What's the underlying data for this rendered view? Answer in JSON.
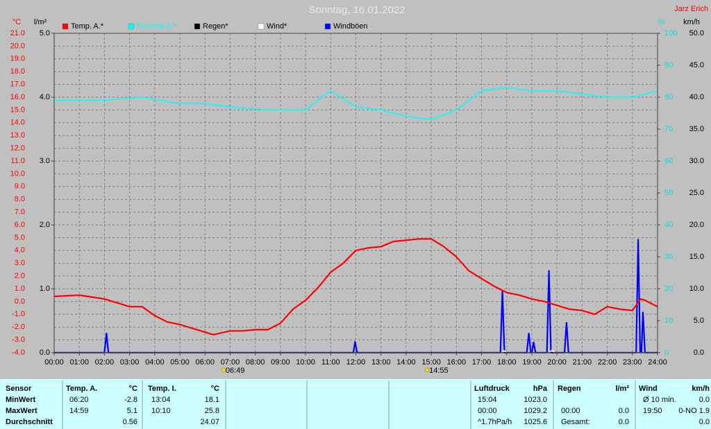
{
  "chart_data": {
    "type": "line",
    "title": "Sonntag, 16.01.2022",
    "credit": "Jarz Erich",
    "grid": true,
    "xlim": [
      0,
      24
    ],
    "xticks": [
      {
        "value": 0,
        "label": "00:00"
      },
      {
        "value": 1,
        "label": "01:00"
      },
      {
        "value": 2,
        "label": "02:00"
      },
      {
        "value": 3,
        "label": "03:00"
      },
      {
        "value": 4,
        "label": "04:00"
      },
      {
        "value": 5,
        "label": "05:00"
      },
      {
        "value": 6,
        "label": "06:00"
      },
      {
        "value": 7,
        "label": "07:00"
      },
      {
        "value": 8,
        "label": "08:00"
      },
      {
        "value": 9,
        "label": "09:00"
      },
      {
        "value": 10,
        "label": "10:00"
      },
      {
        "value": 11,
        "label": "11:00"
      },
      {
        "value": 12,
        "label": "12:00"
      },
      {
        "value": 13,
        "label": "13:00"
      },
      {
        "value": 14,
        "label": "14:00"
      },
      {
        "value": 15,
        "label": "15:00"
      },
      {
        "value": 16,
        "label": "16:00"
      },
      {
        "value": 17,
        "label": "17:00"
      },
      {
        "value": 18,
        "label": "18:00"
      },
      {
        "value": 19,
        "label": "19:00"
      },
      {
        "value": 20,
        "label": "20:00"
      },
      {
        "value": 21,
        "label": "21:00"
      },
      {
        "value": 22,
        "label": "22:00"
      },
      {
        "value": 23,
        "label": "23:00"
      },
      {
        "value": 24,
        "label": "24:00"
      }
    ],
    "ylabel": "°C",
    "ylim": [
      -4,
      21
    ],
    "yticks": [
      {
        "value": 21,
        "label": "21.0"
      },
      {
        "value": 20,
        "label": "20.0"
      },
      {
        "value": 19,
        "label": "19.0"
      },
      {
        "value": 18,
        "label": "18.0"
      },
      {
        "value": 17,
        "label": "17.0"
      },
      {
        "value": 16,
        "label": "16.0"
      },
      {
        "value": 15,
        "label": "15.0"
      },
      {
        "value": 14,
        "label": "14.0"
      },
      {
        "value": 13,
        "label": "13.0"
      },
      {
        "value": 12,
        "label": "12.0"
      },
      {
        "value": 11,
        "label": "11.0"
      },
      {
        "value": 10,
        "label": "10.0"
      },
      {
        "value": 9,
        "label": "9.0"
      },
      {
        "value": 8,
        "label": "8.0"
      },
      {
        "value": 7,
        "label": "7.0"
      },
      {
        "value": 6,
        "label": "6.0"
      },
      {
        "value": 5,
        "label": "5.0"
      },
      {
        "value": 4,
        "label": "4.0"
      },
      {
        "value": 3,
        "label": "3.0"
      },
      {
        "value": 2,
        "label": "2.0"
      },
      {
        "value": 1,
        "label": "1.0"
      },
      {
        "value": 0,
        "label": "0.0"
      },
      {
        "value": -1,
        "label": "-1.0"
      },
      {
        "value": -2,
        "label": "-2.0"
      },
      {
        "value": -3,
        "label": "-3.0"
      },
      {
        "value": -4,
        "label": "-4.0"
      }
    ],
    "y2label": "l/m²",
    "y2lim": [
      0,
      5
    ],
    "y2ticks": [
      {
        "value": 5,
        "label": "5.0"
      },
      {
        "value": 4,
        "label": "4.0"
      },
      {
        "value": 3,
        "label": "3.0"
      },
      {
        "value": 2,
        "label": "2.0"
      },
      {
        "value": 1,
        "label": "1.0"
      },
      {
        "value": 0,
        "label": "0.0"
      }
    ],
    "y3label": "%",
    "y3lim": [
      0,
      100
    ],
    "y3ticks": [
      100,
      90,
      80,
      70,
      60,
      50,
      40,
      30,
      20,
      10,
      0
    ],
    "y4label": "km/h",
    "y4lim": [
      0,
      50
    ],
    "y4ticks": [
      {
        "value": 50,
        "label": "50.0"
      },
      {
        "value": 45,
        "label": "45.0"
      },
      {
        "value": 40,
        "label": "40.0"
      },
      {
        "value": 35,
        "label": "35.0"
      },
      {
        "value": 30,
        "label": "30.0"
      },
      {
        "value": 25,
        "label": "25.0"
      },
      {
        "value": 20,
        "label": "20.0"
      },
      {
        "value": 15,
        "label": "15.0"
      },
      {
        "value": 10,
        "label": "10.0"
      },
      {
        "value": 5,
        "label": "5.0"
      },
      {
        "value": 0,
        "label": "0.0"
      }
    ],
    "series": [
      {
        "name": "Temp. A.*",
        "color": "#ff0000",
        "axis": "y",
        "x": [
          0,
          1,
          2,
          2.67,
          3,
          3.5,
          4,
          4.5,
          5,
          5.5,
          6,
          6.33,
          7,
          7.5,
          8,
          8.5,
          9,
          9.5,
          10,
          10.5,
          11,
          11.5,
          12,
          12.5,
          13,
          13.5,
          14,
          14.5,
          15,
          15.5,
          16,
          16.5,
          17,
          17.5,
          18,
          18.5,
          19,
          19.5,
          20,
          20.5,
          21,
          21.5,
          22,
          22.5,
          23,
          23.33,
          23.5,
          24
        ],
        "values": [
          0.4,
          0.5,
          0.2,
          -0.2,
          -0.4,
          -0.4,
          -1.1,
          -1.6,
          -1.8,
          -2.1,
          -2.4,
          -2.6,
          -2.3,
          -2.3,
          -2.2,
          -2.2,
          -1.7,
          -0.6,
          0.1,
          1.1,
          2.3,
          3.0,
          4.0,
          4.2,
          4.3,
          4.7,
          4.8,
          4.9,
          4.9,
          4.3,
          3.5,
          2.4,
          1.8,
          1.2,
          0.7,
          0.5,
          0.2,
          0.0,
          -0.3,
          -0.6,
          -0.7,
          -1.0,
          -0.4,
          -0.6,
          -0.7,
          0.2,
          0.1,
          -0.4
        ]
      },
      {
        "name": "Feuchte A.*",
        "color": "#00ffff",
        "axis": "y3",
        "x": [
          0,
          2,
          3.5,
          5,
          6,
          7,
          8.5,
          10,
          11,
          12,
          13,
          14,
          15,
          16,
          17,
          18,
          19,
          20,
          21,
          22,
          23,
          24
        ],
        "values": [
          79,
          79,
          80,
          78,
          78,
          77,
          76,
          76,
          82,
          77,
          76,
          74,
          73,
          76,
          82,
          83,
          82,
          82,
          81,
          80,
          80,
          82
        ]
      },
      {
        "name": "Regen*",
        "color": "#000000",
        "axis": "y2",
        "x": [
          0,
          24
        ],
        "values": [
          0,
          0
        ]
      },
      {
        "name": "Wind*",
        "color": "#ffffff",
        "axis": "y4",
        "x": [
          0,
          17.8,
          17.9,
          18.0,
          19.7,
          19.8,
          19.9,
          24
        ],
        "values": [
          0,
          0,
          0.3,
          0,
          0,
          0.4,
          0,
          0
        ]
      },
      {
        "name": "Windböen",
        "color": "#0000ff",
        "axis": "y4",
        "x": [
          0,
          2.0,
          2.08,
          2.16,
          11.9,
          11.97,
          12.05,
          17.75,
          17.83,
          17.91,
          18.8,
          18.88,
          18.96,
          19.0,
          19.07,
          19.15,
          19.6,
          19.68,
          19.76,
          20.3,
          20.38,
          20.46,
          23.15,
          23.23,
          23.31,
          23.36,
          23.42,
          23.5,
          24
        ],
        "values": [
          0,
          0,
          3.0,
          0,
          0,
          1.7,
          0,
          0,
          9.6,
          0,
          0,
          3.0,
          0,
          0,
          1.6,
          0,
          0,
          12.8,
          0,
          0,
          4.7,
          0,
          0,
          17.7,
          0,
          0,
          6.3,
          0,
          0
        ]
      }
    ],
    "annotations": [
      {
        "x": 6.8167,
        "text": "06:49"
      },
      {
        "x": 14.9167,
        "text": "14:55"
      }
    ]
  },
  "table": {
    "header": {
      "label": "Sensor",
      "ta_time": "Temp. A.",
      "ta": "°C",
      "ti_time": "Temp. I.",
      "ti": "°C",
      "p_time": "Luftdruck",
      "p": "hPa",
      "r_time": "Regen",
      "r": "l/m²",
      "w_time": "Wind",
      "w": "km/h"
    },
    "rows": [
      {
        "label": "MinWert",
        "ta_time": "06:20",
        "ta": "-2.8",
        "ti_time": "13:04",
        "ti": "18.1",
        "p_time": "15:04",
        "p": "1023.0",
        "w_time": "Ø 10 min.",
        "w": "0.0"
      },
      {
        "label": "MaxWert",
        "ta_time": "14:59",
        "ta": "5.1",
        "ti_time": "10:10",
        "ti": "25.8",
        "p_time": "00:00",
        "p": "1029.2",
        "r_time": "00:00",
        "r": "0.0",
        "w_time": "19:50",
        "w": "0-NO 1.9"
      },
      {
        "label": "Durchschnitt",
        "ta": "0.56",
        "ti": "24.07",
        "p_time": "^1.7hPa/h",
        "p": "1025.6",
        "r_time": "Gesamt:",
        "r": "0.0",
        "w": "0.0"
      }
    ]
  }
}
